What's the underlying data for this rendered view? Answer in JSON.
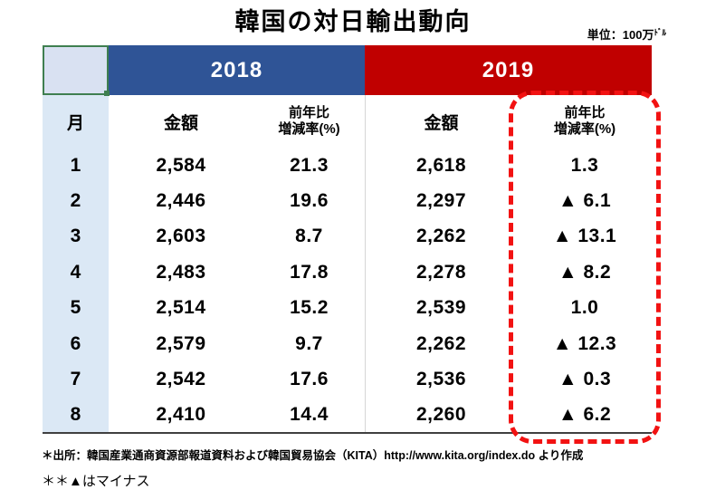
{
  "title": "韓国の対日輸出動向",
  "unit": {
    "prefix": "単位：100万",
    "suffix": "ﾄﾞﾙ"
  },
  "colors": {
    "header_2018": "#2f5496",
    "header_2019": "#c00000",
    "month_column_bg": "#dbe8f5",
    "corner_cell_bg": "#d9e1f2",
    "corner_cell_border": "#3f7f50",
    "highlight_dashed_border": "#f21212",
    "column_divider": "#d6d6d6",
    "bottom_rule": "#404040"
  },
  "table": {
    "year_2018": "2018",
    "year_2019": "2019",
    "month_header": "月",
    "amount_header_2018": "金額",
    "amount_header_2019": "金額",
    "rate_header_line1": "前年比",
    "rate_header_line2": "増減率(%)",
    "rows": [
      {
        "month": "1",
        "y2018_amount": "2,584",
        "y2018_rate": "21.3",
        "y2019_amount": "2,618",
        "y2019_rate": "1.3"
      },
      {
        "month": "2",
        "y2018_amount": "2,446",
        "y2018_rate": "19.6",
        "y2019_amount": "2,297",
        "y2019_rate": "▲ 6.1"
      },
      {
        "month": "3",
        "y2018_amount": "2,603",
        "y2018_rate": "8.7",
        "y2019_amount": "2,262",
        "y2019_rate": "▲ 13.1"
      },
      {
        "month": "4",
        "y2018_amount": "2,483",
        "y2018_rate": "17.8",
        "y2019_amount": "2,278",
        "y2019_rate": "▲ 8.2"
      },
      {
        "month": "5",
        "y2018_amount": "2,514",
        "y2018_rate": "15.2",
        "y2019_amount": "2,539",
        "y2019_rate": "1.0"
      },
      {
        "month": "6",
        "y2018_amount": "2,579",
        "y2018_rate": "9.7",
        "y2019_amount": "2,262",
        "y2019_rate": "▲ 12.3"
      },
      {
        "month": "7",
        "y2018_amount": "2,542",
        "y2018_rate": "17.6",
        "y2019_amount": "2,536",
        "y2019_rate": "▲ 0.3"
      },
      {
        "month": "8",
        "y2018_amount": "2,410",
        "y2018_rate": "14.4",
        "y2019_amount": "2,260",
        "y2019_rate": "▲ 6.2"
      }
    ]
  },
  "footnotes": {
    "source": "＊出所：韓国産業通商資源部報道資料および韓国貿易協会（KITA）http://www.kita.org/index.do より作成",
    "minus_note": "＊＊▲はマイナス"
  },
  "chart_data": {
    "type": "table",
    "title": "韓国の対日輸出動向",
    "unit": "単位：100万ドル",
    "columns": [
      "月",
      "2018 金額",
      "2018 前年比増減率(%)",
      "2019 金額",
      "2019 前年比増減率(%)"
    ],
    "rows": [
      [
        1,
        2584,
        21.3,
        2618,
        1.3
      ],
      [
        2,
        2446,
        19.6,
        2297,
        -6.1
      ],
      [
        3,
        2603,
        8.7,
        2262,
        -13.1
      ],
      [
        4,
        2483,
        17.8,
        2278,
        -8.2
      ],
      [
        5,
        2514,
        15.2,
        2539,
        1.0
      ],
      [
        6,
        2579,
        9.7,
        2262,
        -12.3
      ],
      [
        7,
        2542,
        17.6,
        2536,
        -0.3
      ],
      [
        8,
        2410,
        14.4,
        2260,
        -6.2
      ]
    ],
    "annotations": [
      "2019年の前年比増減率の列が赤い破線で強調されている",
      "▲はマイナス"
    ],
    "source_note": "＊出所：韓国産業通商資源部報道資料および韓国貿易協会（KITA）http://www.kita.org/index.do より作成"
  }
}
